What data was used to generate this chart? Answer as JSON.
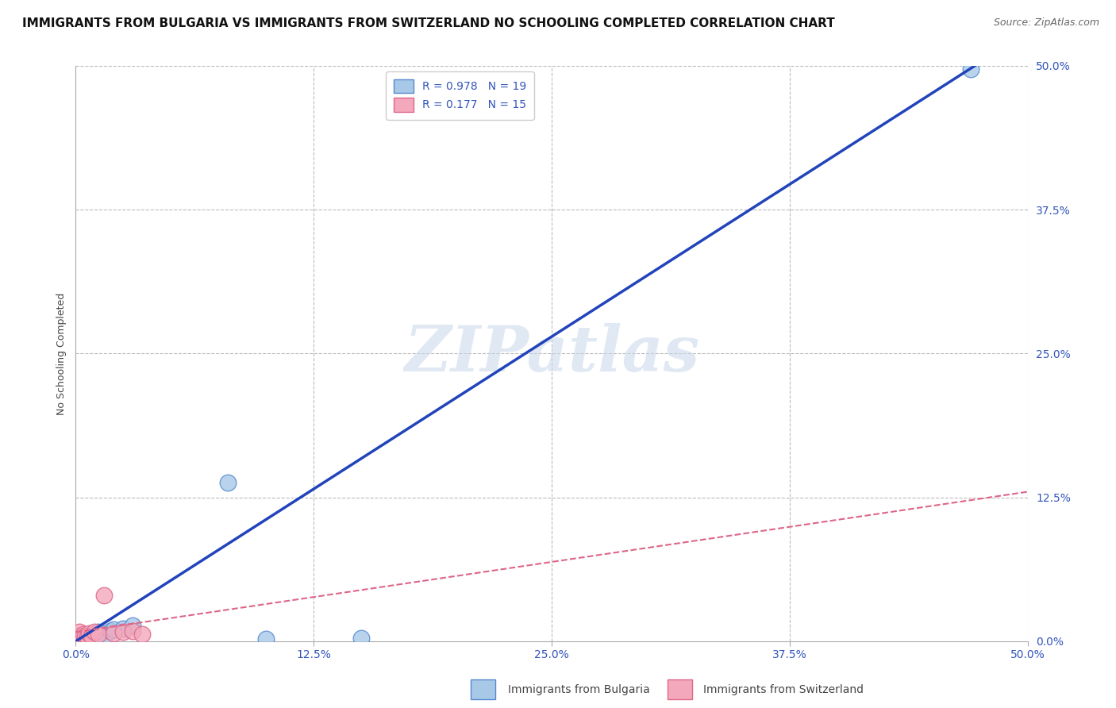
{
  "title": "IMMIGRANTS FROM BULGARIA VS IMMIGRANTS FROM SWITZERLAND NO SCHOOLING COMPLETED CORRELATION CHART",
  "source": "Source: ZipAtlas.com",
  "ylabel": "No Schooling Completed",
  "xlim": [
    0,
    0.5
  ],
  "ylim": [
    0,
    0.5
  ],
  "xtick_labels": [
    "0.0%",
    "12.5%",
    "25.0%",
    "37.5%",
    "50.0%"
  ],
  "xtick_vals": [
    0.0,
    0.125,
    0.25,
    0.375,
    0.5
  ],
  "ytick_labels": [
    "0.0%",
    "12.5%",
    "25.0%",
    "37.5%",
    "50.0%"
  ],
  "ytick_vals": [
    0.0,
    0.125,
    0.25,
    0.375,
    0.5
  ],
  "bulgaria_color": "#a8c8e8",
  "switzerland_color": "#f4a8bc",
  "bulgaria_edge": "#5588cc",
  "switzerland_edge": "#dd6688",
  "blue_line_color": "#2244bb",
  "pink_line_color": "#dd6688",
  "R_bulgaria": 0.978,
  "N_bulgaria": 19,
  "R_switzerland": 0.177,
  "N_switzerland": 15,
  "watermark": "ZIPatlas",
  "bg_color": "#ffffff",
  "grid_color": "#bbbbbb",
  "bulgaria_x": [
    0.002,
    0.003,
    0.004,
    0.005,
    0.006,
    0.007,
    0.008,
    0.009,
    0.01,
    0.012,
    0.015,
    0.018,
    0.02,
    0.025,
    0.03,
    0.08,
    0.1,
    0.15,
    0.47
  ],
  "bulgaria_y": [
    0.001,
    0.002,
    0.003,
    0.003,
    0.004,
    0.005,
    0.005,
    0.006,
    0.007,
    0.008,
    0.002,
    0.009,
    0.01,
    0.011,
    0.014,
    0.138,
    0.002,
    0.003,
    0.497
  ],
  "switzerland_x": [
    0.001,
    0.002,
    0.003,
    0.004,
    0.005,
    0.006,
    0.007,
    0.008,
    0.01,
    0.012,
    0.015,
    0.02,
    0.025,
    0.03,
    0.035
  ],
  "switzerland_y": [
    0.005,
    0.008,
    0.004,
    0.006,
    0.005,
    0.004,
    0.007,
    0.005,
    0.008,
    0.006,
    0.04,
    0.007,
    0.008,
    0.009,
    0.006
  ],
  "blue_line_x0": 0.0,
  "blue_line_y0": 0.0,
  "blue_line_x1": 0.472,
  "blue_line_y1": 0.5,
  "pink_line_x0": 0.0,
  "pink_line_y0": 0.008,
  "pink_line_x1": 0.5,
  "pink_line_y1": 0.13,
  "title_fontsize": 11,
  "source_fontsize": 9,
  "axis_label_fontsize": 9,
  "tick_fontsize": 10,
  "legend_fontsize": 10,
  "tick_color": "#3355bb"
}
